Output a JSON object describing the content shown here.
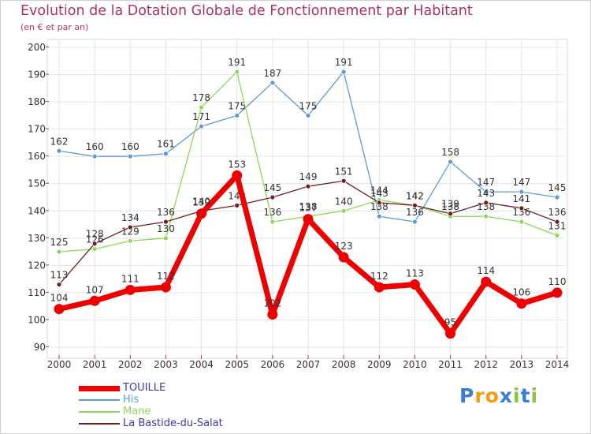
{
  "header": {
    "title": "Evolution de la Dotation Globale de Fonctionnement par Habitant",
    "subtitle": "(en € et par an)"
  },
  "logo": {
    "text": "Proxiti",
    "colors": [
      "#3a7bd5",
      "#f39c12",
      "#f39c12",
      "#3a7bd5",
      "#8bc34a",
      "#3a7bd5",
      "#8bc34a"
    ]
  },
  "chart_data": {
    "type": "line",
    "x": [
      "2000",
      "2001",
      "2002",
      "2003",
      "2004",
      "2005",
      "2006",
      "2007",
      "2008",
      "2009",
      "2010",
      "2011",
      "2012",
      "2013",
      "2014"
    ],
    "ylim": [
      90,
      200
    ],
    "yticks": [
      90,
      100,
      110,
      120,
      130,
      140,
      150,
      160,
      170,
      180,
      190,
      200
    ],
    "grid": true,
    "legend_position": "bottom-left",
    "series": [
      {
        "name": "His",
        "color": "#5b9bd5",
        "values": [
          162,
          160,
          160,
          161,
          171,
          175,
          187,
          175,
          191,
          138,
          136,
          158,
          147,
          147,
          145
        ]
      },
      {
        "name": "Mane",
        "color": "#8fd659",
        "values": [
          125,
          126,
          129,
          130,
          178,
          191,
          136,
          138,
          140,
          144,
          142,
          138,
          138,
          136,
          131
        ]
      },
      {
        "name": "La Bastide-du-Salat",
        "color": "#6e1f1f",
        "values": [
          113,
          128,
          134,
          136,
          140,
          142,
          145,
          149,
          151,
          143,
          142,
          139,
          143,
          141,
          136
        ]
      },
      {
        "name": "TOUILLE",
        "color": "#ee0000",
        "values": [
          104,
          107,
          111,
          112,
          139,
          153,
          102,
          137,
          123,
          112,
          113,
          95,
          114,
          106,
          110
        ]
      }
    ]
  }
}
